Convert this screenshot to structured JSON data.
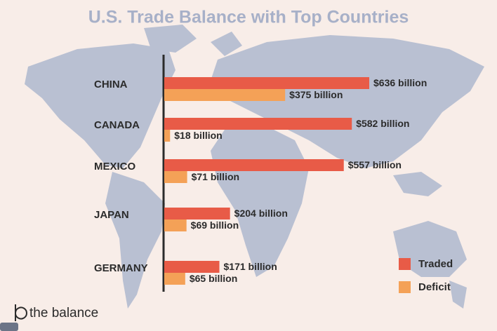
{
  "chart_data": {
    "type": "hbar-grouped",
    "title": "U.S. Trade Balance with Top Countries",
    "categories": [
      "CHINA",
      "CANADA",
      "MEXICO",
      "JAPAN",
      "GERMANY"
    ],
    "series": [
      {
        "name": "Traded",
        "color": "#e85b47",
        "values": [
          636,
          582,
          557,
          204,
          171
        ],
        "value_labels": [
          "$636 billion",
          "$582 billion",
          "$557 billion",
          "$204 billion",
          "$171 billion"
        ]
      },
      {
        "name": "Deficit",
        "color": "#f4a157",
        "values": [
          375,
          18,
          71,
          69,
          65
        ],
        "value_labels": [
          "$375 billion",
          "$18 billion",
          "$71 billion",
          "$69 billion",
          "$65 billion"
        ]
      }
    ],
    "legend": "bottom-right"
  },
  "brand": "the balance"
}
